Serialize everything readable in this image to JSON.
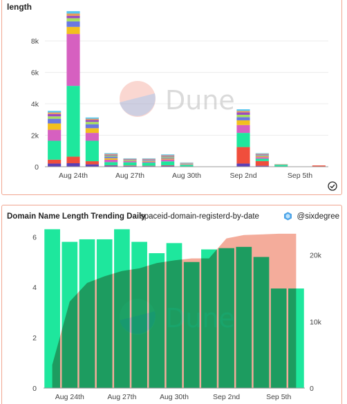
{
  "panel1": {
    "title": "length"
  },
  "panel2": {
    "title": "Domain Name Length Trending Daily",
    "query_name": "spaceid-domain-registerd-by-date",
    "author": "@sixdegree"
  },
  "watermark": "Dune",
  "colors": {
    "border": "#f0a58f",
    "green": "#1ee79d",
    "olive": "#7c9e6a",
    "salmon": "#f3a896"
  },
  "chart_data": [
    {
      "type": "bar",
      "stacked": true,
      "xlabel": "",
      "ylabel": "",
      "ylim": [
        0,
        9500
      ],
      "yticks": [
        0,
        2000,
        4000,
        6000,
        8000
      ],
      "ytick_labels": [
        "0",
        "2k",
        "4k",
        "6k",
        "8k"
      ],
      "xtick_labels": [
        "Aug 24th",
        "Aug 27th",
        "Aug 30th",
        "Sep 2nd",
        "Sep 5th"
      ],
      "xtick_index": [
        1,
        4,
        7,
        10,
        13
      ],
      "categories": [
        "Aug 23",
        "Aug 24",
        "Aug 25",
        "Aug 26",
        "Aug 27",
        "Aug 28",
        "Aug 29",
        "Aug 30",
        "Aug 31",
        "Sep 1",
        "Sep 2",
        "Sep 3",
        "Sep 4",
        "Sep 5",
        "Sep 6"
      ],
      "series": [
        {
          "color": "#5a3fb6",
          "values": [
            200,
            220,
            150,
            70,
            50,
            40,
            60,
            20,
            0,
            0,
            200,
            60,
            10,
            0,
            0
          ]
        },
        {
          "color": "#f04e3c",
          "values": [
            250,
            420,
            200,
            20,
            30,
            20,
            30,
            0,
            0,
            0,
            1050,
            300,
            10,
            0,
            80
          ]
        },
        {
          "color": "#1ee79d",
          "values": [
            1200,
            4500,
            1300,
            200,
            200,
            200,
            250,
            100,
            0,
            0,
            900,
            150,
            100,
            0,
            0
          ]
        },
        {
          "color": "#d660c0",
          "values": [
            700,
            3300,
            500,
            150,
            70,
            60,
            120,
            30,
            0,
            0,
            500,
            100,
            20,
            0,
            0
          ]
        },
        {
          "color": "#f2c01e",
          "values": [
            400,
            450,
            300,
            100,
            30,
            40,
            60,
            20,
            0,
            0,
            300,
            60,
            10,
            0,
            0
          ]
        },
        {
          "color": "#6a78e0",
          "values": [
            300,
            350,
            250,
            100,
            30,
            40,
            60,
            20,
            0,
            0,
            200,
            50,
            10,
            0,
            0
          ]
        },
        {
          "color": "#a7df5e",
          "values": [
            150,
            200,
            150,
            70,
            30,
            30,
            60,
            20,
            0,
            0,
            150,
            40,
            10,
            0,
            0
          ]
        },
        {
          "color": "#9a4cc0",
          "values": [
            150,
            150,
            120,
            50,
            30,
            40,
            50,
            20,
            0,
            0,
            150,
            40,
            0,
            0,
            0
          ]
        },
        {
          "color": "#e59a5c",
          "values": [
            100,
            150,
            80,
            50,
            30,
            30,
            40,
            20,
            0,
            0,
            100,
            30,
            0,
            0,
            0
          ]
        },
        {
          "color": "#54c5ef",
          "values": [
            100,
            150,
            80,
            50,
            30,
            30,
            50,
            20,
            0,
            0,
            100,
            30,
            0,
            0,
            0
          ]
        }
      ]
    },
    {
      "type": "bar+area",
      "xlabel": "",
      "ylabel": "",
      "ylim_left": [
        0,
        6.2
      ],
      "yticks_left": [
        0,
        2,
        4,
        6
      ],
      "ylim_right": [
        0,
        23500
      ],
      "yticks_right": [
        0,
        10000,
        20000
      ],
      "ytick_labels_right": [
        "0",
        "10k",
        "20k"
      ],
      "xtick_labels": [
        "Aug 24th",
        "Aug 27th",
        "Aug 30th",
        "Sep 2nd",
        "Sep 5th"
      ],
      "xtick_index": [
        1,
        4,
        7,
        10,
        13
      ],
      "categories": [
        "Aug 23",
        "Aug 24",
        "Aug 25",
        "Aug 26",
        "Aug 27",
        "Aug 28",
        "Aug 29",
        "Aug 30",
        "Aug 31",
        "Sep 1",
        "Sep 2",
        "Sep 3",
        "Sep 4",
        "Sep 5",
        "Sep 6"
      ],
      "series": [
        {
          "kind": "bar",
          "axis": "left",
          "color": "#1ee79d",
          "values": [
            6.3,
            5.8,
            5.9,
            5.9,
            6.3,
            5.8,
            5.35,
            5.75,
            5.0,
            5.5,
            5.55,
            5.6,
            5.2,
            3.95,
            3.95
          ]
        },
        {
          "kind": "area",
          "axis": "right",
          "color": "#f3a896",
          "values": [
            3500,
            13000,
            15800,
            16800,
            17600,
            18000,
            18800,
            19200,
            19500,
            19500,
            22500,
            23000,
            23100,
            23200,
            23200
          ]
        }
      ]
    }
  ]
}
